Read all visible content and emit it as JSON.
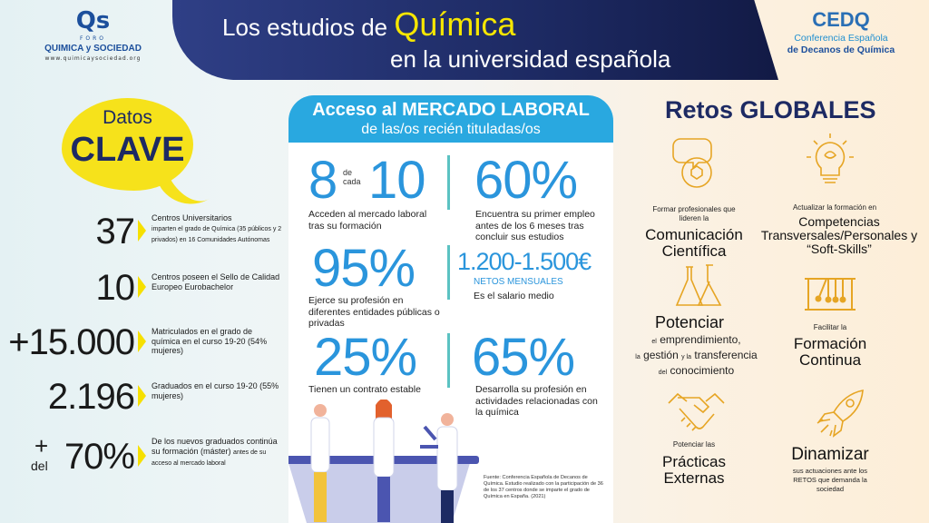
{
  "header": {
    "title_prefix": "Los estudios de",
    "title_highlight": "Química",
    "title_line2": "en la universidad española"
  },
  "logo_left": {
    "mark": "Qs",
    "foro": "FORO",
    "name": "QUIMICA y SOCIEDAD",
    "url": "www.quimicaysociedad.org"
  },
  "logo_right": {
    "mark": "CEDQ",
    "line1": "Conferencia Española",
    "line2": "de Decanos de Química"
  },
  "datos_clave": {
    "title1": "Datos",
    "title2": "CLAVE",
    "items": [
      {
        "value": "37",
        "text": "Centros Universitarios",
        "small": "imparten el grado de Química (35 públicos y 2 privados) en 16 Comunidades Autónomas"
      },
      {
        "value": "10",
        "text": "Centros poseen el Sello de Calidad Europeo Eurobachelor",
        "small": ""
      },
      {
        "value": "+15.000",
        "text": "Matriculados en el grado de química en el curso 19-20 (54% mujeres)",
        "small": ""
      },
      {
        "value": "2.196",
        "text": "Graduados en el curso 19-20 (55% mujeres)",
        "small": ""
      },
      {
        "value": "70%",
        "prefix_plus": "+",
        "prefix_del": "del",
        "text": "De los nuevos graduados continúa su formación (máster)",
        "small": "antes de su acceso al mercado laboral"
      }
    ]
  },
  "mercado": {
    "title": "Acceso al MERCADO LABORAL",
    "subtitle": "de las/os recién tituladas/os",
    "stats": [
      {
        "value_a": "8",
        "connector_1": "de",
        "connector_2": "cada",
        "value_b": "10",
        "text": "Acceden al mercado laboral tras su formación"
      },
      {
        "value": "60%",
        "text": "Encuentra su primer empleo antes de los 6 meses tras concluir sus estudios"
      },
      {
        "value": "95%",
        "text": "Ejerce su profesión en diferentes entidades públicas o privadas"
      },
      {
        "value": "1.200-1.500€",
        "label": "NETOS MENSUALES",
        "text": "Es el salario medio"
      },
      {
        "value": "25%",
        "text": "Tienen un contrato estable"
      },
      {
        "value": "65%",
        "text": "Desarrolla su profesión en actividades relacionadas con la química"
      }
    ],
    "source": "Fuente: Conferencia Española de Decanos de Química. Estudio realizado con la participación de 36 de los 37 centros donde se imparte el grado de Química en España. (2021)"
  },
  "retos": {
    "title": "Retos GLOBALES",
    "items": [
      {
        "icon": "speech-bubble-molecule-icon",
        "small": "Formar profesionales que lideren la",
        "large": "Comunicación Científica"
      },
      {
        "icon": "lightbulb-brain-icon",
        "small": "Actualizar la formación en",
        "large": "Competencias Transversales/Personales y “Soft-Skills”"
      },
      {
        "icon": "flasks-icon",
        "large": "Potenciar",
        "small_1": "el",
        "mid_1": "emprendimiento,",
        "small_2": "la",
        "mid_2": "gestión",
        "small_3": "y la",
        "mid_3": "transferencia",
        "small_4": "del",
        "mid_4": "conocimiento"
      },
      {
        "icon": "newtons-cradle-icon",
        "small": "Facilitar la",
        "large": "Formación Continua"
      },
      {
        "icon": "handshake-icon",
        "small": "Potenciar las",
        "large": "Prácticas Externas"
      },
      {
        "icon": "rocket-icon",
        "large": "Dinamizar",
        "small": "sus actuaciones ante los RETOS que demanda la sociedad"
      }
    ]
  },
  "colors": {
    "navy": "#1d2a63",
    "blue": "#2a95dc",
    "yellow": "#f6e21b",
    "gold": "#e6a524"
  }
}
